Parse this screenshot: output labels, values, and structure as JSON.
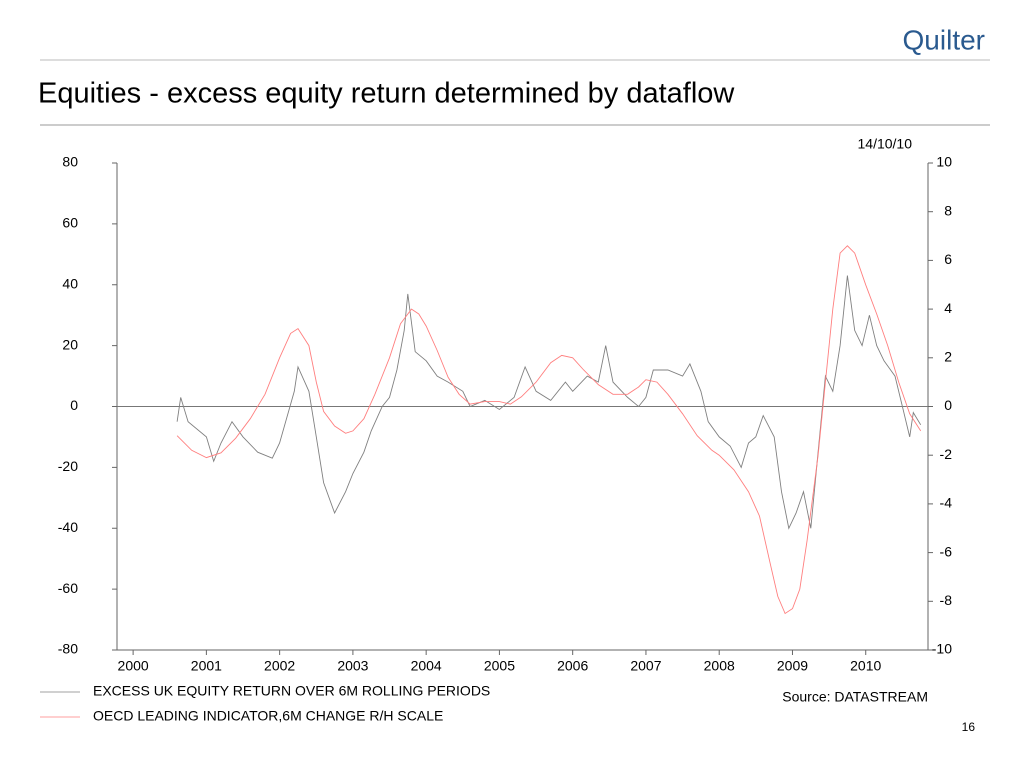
{
  "logo": "Quilter",
  "title": "Equities - excess equity return determined by dataflow",
  "page_number": "16",
  "chart_data": {
    "type": "line",
    "date_label": "14/10/10",
    "source": "Source: DATASTREAM",
    "xlim": [
      1999.78,
      2010.85
    ],
    "xticks": [
      2000,
      2001,
      2002,
      2003,
      2004,
      2005,
      2006,
      2007,
      2008,
      2009,
      2010
    ],
    "ylim": [
      -80,
      80
    ],
    "yticks": [
      80,
      60,
      40,
      20,
      0,
      -20,
      -40,
      -60,
      -80
    ],
    "y2lim": [
      -10,
      10
    ],
    "y2ticks": [
      10,
      8,
      6,
      4,
      2,
      0,
      -2,
      -4,
      -6,
      -8,
      -10
    ],
    "zero_line": true,
    "series": [
      {
        "name": "EXCESS UK EQUITY RETURN OVER 6M ROLLING PERIODS",
        "color": "#808080",
        "axis": "y",
        "x": [
          2000.6,
          2000.65,
          2000.75,
          2001.0,
          2001.1,
          2001.2,
          2001.35,
          2001.5,
          2001.7,
          2001.9,
          2002.0,
          2002.2,
          2002.25,
          2002.4,
          2002.5,
          2002.6,
          2002.75,
          2002.9,
          2003.0,
          2003.15,
          2003.25,
          2003.4,
          2003.5,
          2003.6,
          2003.7,
          2003.75,
          2003.85,
          2004.0,
          2004.15,
          2004.3,
          2004.5,
          2004.6,
          2004.8,
          2005.0,
          2005.2,
          2005.35,
          2005.5,
          2005.7,
          2005.9,
          2006.0,
          2006.2,
          2006.35,
          2006.45,
          2006.55,
          2006.75,
          2006.9,
          2007.0,
          2007.1,
          2007.3,
          2007.5,
          2007.6,
          2007.75,
          2007.85,
          2008.0,
          2008.15,
          2008.3,
          2008.4,
          2008.5,
          2008.6,
          2008.75,
          2008.85,
          2008.95,
          2009.05,
          2009.15,
          2009.25,
          2009.35,
          2009.45,
          2009.55,
          2009.65,
          2009.75,
          2009.85,
          2009.95,
          2010.05,
          2010.15,
          2010.25,
          2010.4,
          2010.5,
          2010.6,
          2010.65,
          2010.75
        ],
        "values": [
          -5,
          3,
          -5,
          -10,
          -18,
          -12,
          -5,
          -10,
          -15,
          -17,
          -12,
          5,
          13,
          5,
          -10,
          -25,
          -35,
          -28,
          -22,
          -15,
          -8,
          0,
          3,
          12,
          25,
          37,
          18,
          15,
          10,
          8,
          5,
          0,
          2,
          -1,
          3,
          13,
          5,
          2,
          8,
          5,
          10,
          8,
          20,
          8,
          3,
          0,
          3,
          12,
          12,
          10,
          14,
          5,
          -5,
          -10,
          -13,
          -20,
          -12,
          -10,
          -3,
          -10,
          -28,
          -40,
          -35,
          -28,
          -40,
          -15,
          10,
          5,
          20,
          43,
          25,
          20,
          30,
          20,
          15,
          10,
          0,
          -10,
          -2,
          -6
        ]
      },
      {
        "name": "OECD LEADING INDICATOR,6M CHANGE R/H SCALE",
        "color": "#ff7f7f",
        "axis": "y2",
        "x": [
          2000.6,
          2000.8,
          2001.0,
          2001.2,
          2001.4,
          2001.6,
          2001.8,
          2002.0,
          2002.15,
          2002.25,
          2002.4,
          2002.5,
          2002.6,
          2002.75,
          2002.9,
          2003.0,
          2003.15,
          2003.3,
          2003.5,
          2003.65,
          2003.8,
          2003.9,
          2004.0,
          2004.15,
          2004.3,
          2004.45,
          2004.6,
          2004.8,
          2005.0,
          2005.15,
          2005.3,
          2005.5,
          2005.7,
          2005.85,
          2006.0,
          2006.15,
          2006.35,
          2006.55,
          2006.75,
          2006.9,
          2007.0,
          2007.15,
          2007.3,
          2007.5,
          2007.7,
          2007.9,
          2008.0,
          2008.2,
          2008.4,
          2008.55,
          2008.7,
          2008.8,
          2008.9,
          2009.0,
          2009.1,
          2009.2,
          2009.35,
          2009.45,
          2009.55,
          2009.65,
          2009.75,
          2009.85,
          2010.0,
          2010.15,
          2010.3,
          2010.45,
          2010.6,
          2010.75
        ],
        "values": [
          -1.2,
          -1.8,
          -2.1,
          -1.9,
          -1.3,
          -0.5,
          0.5,
          2.0,
          3.0,
          3.2,
          2.5,
          1.0,
          -0.2,
          -0.8,
          -1.1,
          -1.0,
          -0.5,
          0.5,
          2.0,
          3.4,
          4.0,
          3.8,
          3.3,
          2.3,
          1.2,
          0.5,
          0.1,
          0.2,
          0.2,
          0.1,
          0.4,
          1.0,
          1.8,
          2.1,
          2.0,
          1.5,
          0.9,
          0.5,
          0.5,
          0.8,
          1.1,
          1.0,
          0.5,
          -0.3,
          -1.2,
          -1.8,
          -2.0,
          -2.6,
          -3.5,
          -4.5,
          -6.5,
          -7.8,
          -8.5,
          -8.3,
          -7.5,
          -5.5,
          -2.0,
          1.0,
          4.0,
          6.3,
          6.6,
          6.3,
          5.0,
          3.8,
          2.5,
          1.0,
          -0.3,
          -1.0
        ]
      }
    ]
  }
}
